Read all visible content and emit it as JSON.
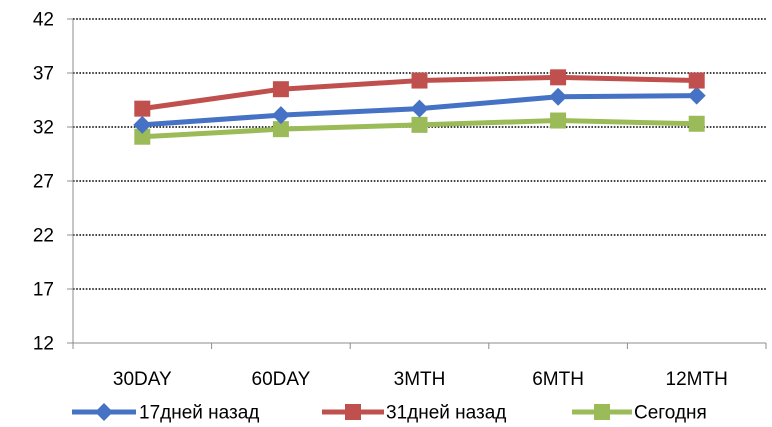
{
  "chart_data": {
    "type": "line",
    "title": "",
    "xlabel": "",
    "ylabel": "",
    "categories": [
      "30DAY",
      "60DAY",
      "3MTH",
      "6MTH",
      "12MTH"
    ],
    "yticks": [
      "12",
      "17",
      "22",
      "27",
      "32",
      "37",
      "42"
    ],
    "ylim": [
      12,
      42
    ],
    "grid": "horizontal dotted",
    "legend_position": "bottom",
    "series": [
      {
        "name": "17дней назад",
        "values": [
          32.2,
          33.1,
          33.7,
          34.8,
          34.9
        ],
        "color": "#4572C4",
        "marker": "diamond"
      },
      {
        "name": "31дней назад",
        "values": [
          33.7,
          35.5,
          36.3,
          36.6,
          36.3
        ],
        "color": "#C0504D",
        "marker": "square"
      },
      {
        "name": "Сегодня",
        "values": [
          31.1,
          31.8,
          32.2,
          32.6,
          32.3
        ],
        "color": "#9BBB59",
        "marker": "square"
      }
    ]
  }
}
